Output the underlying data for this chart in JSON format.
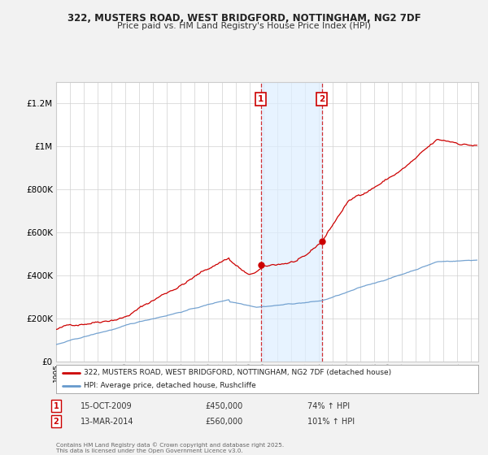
{
  "title": "322, MUSTERS ROAD, WEST BRIDGFORD, NOTTINGHAM, NG2 7DF",
  "subtitle": "Price paid vs. HM Land Registry's House Price Index (HPI)",
  "background_color": "#f2f2f2",
  "plot_bg_color": "#ffffff",
  "red_line_color": "#cc0000",
  "blue_line_color": "#6699cc",
  "transaction1": {
    "date": "15-OCT-2009",
    "price": 450000,
    "hpi_pct": "74%",
    "label": "1",
    "year": 2009.79
  },
  "transaction2": {
    "date": "13-MAR-2014",
    "price": 560000,
    "hpi_pct": "101%",
    "label": "2",
    "year": 2014.2
  },
  "xmin": 1995.0,
  "xmax": 2025.5,
  "ymin": 0,
  "ymax": 1300000,
  "yticks": [
    0,
    200000,
    400000,
    600000,
    800000,
    1000000,
    1200000
  ],
  "ytick_labels": [
    "£0",
    "£200K",
    "£400K",
    "£600K",
    "£800K",
    "£1M",
    "£1.2M"
  ],
  "footnote": "Contains HM Land Registry data © Crown copyright and database right 2025.\nThis data is licensed under the Open Government Licence v3.0.",
  "legend_line1": "322, MUSTERS ROAD, WEST BRIDGFORD, NOTTINGHAM, NG2 7DF (detached house)",
  "legend_line2": "HPI: Average price, detached house, Rushcliffe",
  "shaded_start": 2009.79,
  "shaded_end": 2014.2
}
